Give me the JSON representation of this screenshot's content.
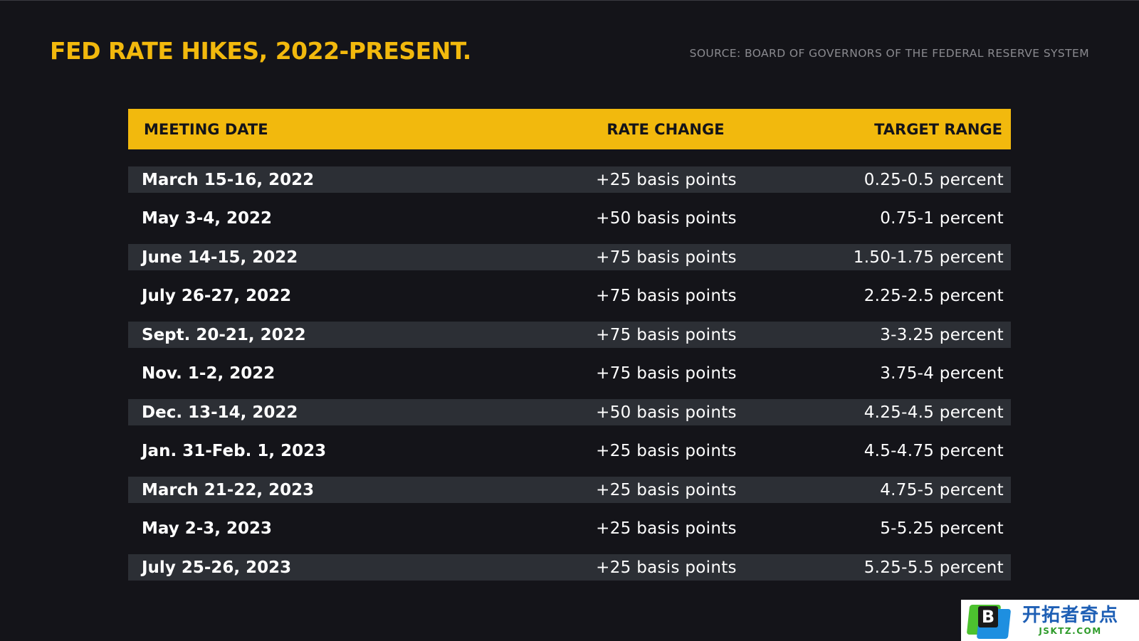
{
  "title": "FED RATE HIKES, 2022-PRESENT.",
  "source": "SOURCE: BOARD OF GOVERNORS OF THE FEDERAL RESERVE SYSTEM",
  "table": {
    "headers": {
      "date": "MEETING DATE",
      "change": "RATE CHANGE",
      "range": "TARGET RANGE"
    },
    "rows": [
      {
        "date": "March 15-16, 2022",
        "change": "+25 basis points",
        "range": "0.25-0.5 percent"
      },
      {
        "date": "May 3-4, 2022",
        "change": "+50 basis points",
        "range": "0.75-1 percent"
      },
      {
        "date": "June 14-15, 2022",
        "change": "+75 basis points",
        "range": "1.50-1.75 percent"
      },
      {
        "date": "July 26-27, 2022",
        "change": "+75 basis points",
        "range": "2.25-2.5 percent"
      },
      {
        "date": "Sept. 20-21, 2022",
        "change": "+75 basis points",
        "range": "3-3.25 percent"
      },
      {
        "date": "Nov. 1-2, 2022",
        "change": "+75 basis points",
        "range": "3.75-4 percent"
      },
      {
        "date": "Dec. 13-14, 2022",
        "change": "+50 basis points",
        "range": "4.25-4.5 percent"
      },
      {
        "date": "Jan. 31-Feb. 1, 2023",
        "change": "+25 basis points",
        "range": "4.5-4.75 percent"
      },
      {
        "date": "March 21-22, 2023",
        "change": "+25 basis points",
        "range": "4.75-5 percent"
      },
      {
        "date": "May 2-3, 2023",
        "change": "+25 basis points",
        "range": "5-5.25 percent"
      },
      {
        "date": "July 25-26, 2023",
        "change": "+25 basis points",
        "range": "5.25-5.5 percent"
      }
    ]
  },
  "watermark": {
    "logo_letter": "B",
    "name": "开拓者奇点",
    "domain": "JSKTZ.COM"
  },
  "colors": {
    "background": "#141419",
    "accent": "#f2b90d",
    "row_shade": "#2c2f35",
    "text": "#ffffff",
    "source_text": "#8a8a8f"
  }
}
